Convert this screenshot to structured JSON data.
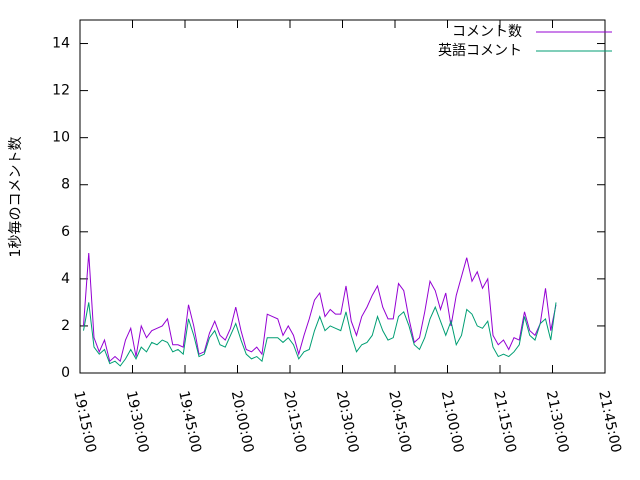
{
  "chart_data": {
    "type": "line",
    "y_label": "1秒毎のコメント数",
    "x": [
      "19:16:00",
      "19:17:30",
      "19:19:00",
      "19:20:30",
      "19:22:00",
      "19:23:30",
      "19:25:00",
      "19:26:30",
      "19:28:00",
      "19:29:30",
      "19:31:00",
      "19:32:30",
      "19:34:00",
      "19:35:30",
      "19:37:00",
      "19:38:30",
      "19:40:00",
      "19:41:30",
      "19:43:00",
      "19:44:30",
      "19:46:00",
      "19:47:30",
      "19:49:00",
      "19:50:30",
      "19:52:00",
      "19:53:30",
      "19:55:00",
      "19:56:30",
      "19:58:00",
      "19:59:30",
      "20:01:00",
      "20:02:30",
      "20:04:00",
      "20:05:30",
      "20:07:00",
      "20:08:30",
      "20:10:00",
      "20:11:30",
      "20:13:00",
      "20:14:30",
      "20:16:00",
      "20:17:30",
      "20:19:00",
      "20:20:30",
      "20:22:00",
      "20:23:30",
      "20:25:00",
      "20:26:30",
      "20:28:00",
      "20:29:30",
      "20:31:00",
      "20:32:30",
      "20:34:00",
      "20:35:30",
      "20:37:00",
      "20:38:30",
      "20:40:00",
      "20:41:30",
      "20:43:00",
      "20:44:30",
      "20:46:00",
      "20:47:30",
      "20:49:00",
      "20:50:30",
      "20:52:00",
      "20:53:30",
      "20:55:00",
      "20:56:30",
      "20:58:00",
      "20:59:30",
      "21:01:00",
      "21:02:30",
      "21:04:00",
      "21:05:30",
      "21:07:00",
      "21:08:30",
      "21:10:00",
      "21:11:30",
      "21:13:00",
      "21:14:30",
      "21:16:00",
      "21:17:30",
      "21:19:00",
      "21:20:30",
      "21:22:00",
      "21:23:30",
      "21:25:00",
      "21:26:30",
      "21:28:00",
      "21:29:30",
      "21:31:00"
    ],
    "series": [
      {
        "name": "コメント数",
        "color": "#9400d3",
        "values": [
          2.0,
          5.1,
          1.5,
          0.9,
          1.4,
          0.5,
          0.7,
          0.5,
          1.4,
          1.9,
          0.7,
          2.0,
          1.5,
          1.8,
          1.9,
          2.0,
          2.3,
          1.2,
          1.2,
          1.1,
          2.9,
          2.0,
          0.8,
          0.9,
          1.7,
          2.2,
          1.6,
          1.4,
          1.9,
          2.8,
          1.8,
          1.0,
          0.9,
          1.1,
          0.8,
          2.5,
          2.4,
          2.3,
          1.6,
          2.0,
          1.6,
          0.8,
          1.6,
          2.3,
          3.1,
          3.4,
          2.4,
          2.7,
          2.5,
          2.5,
          3.7,
          2.2,
          1.6,
          2.4,
          2.8,
          3.3,
          3.7,
          2.8,
          2.3,
          2.3,
          3.8,
          3.5,
          2.3,
          1.3,
          1.5,
          2.6,
          3.9,
          3.5,
          2.7,
          3.4,
          2.0,
          3.3,
          4.1,
          4.9,
          3.9,
          4.3,
          3.6,
          4.0,
          1.6,
          1.2,
          1.4,
          1.0,
          1.5,
          1.4,
          2.6,
          1.8,
          1.6,
          2.1,
          3.6,
          1.8,
          2.9
        ]
      },
      {
        "name": "英語コメント",
        "color": "#009e73",
        "values": [
          1.8,
          3.0,
          1.1,
          0.8,
          1.0,
          0.4,
          0.5,
          0.3,
          0.6,
          1.0,
          0.6,
          1.1,
          0.9,
          1.3,
          1.2,
          1.4,
          1.3,
          0.9,
          1.0,
          0.8,
          2.3,
          1.6,
          0.7,
          0.8,
          1.5,
          1.8,
          1.2,
          1.1,
          1.6,
          2.1,
          1.4,
          0.8,
          0.6,
          0.7,
          0.5,
          1.5,
          1.5,
          1.5,
          1.3,
          1.5,
          1.2,
          0.6,
          0.9,
          1.0,
          1.8,
          2.4,
          1.8,
          2.0,
          1.9,
          1.8,
          2.6,
          1.6,
          0.9,
          1.2,
          1.3,
          1.6,
          2.4,
          1.8,
          1.4,
          1.5,
          2.4,
          2.6,
          2.0,
          1.2,
          1.0,
          1.5,
          2.3,
          2.8,
          2.2,
          1.6,
          2.2,
          1.2,
          1.6,
          2.7,
          2.5,
          2.0,
          1.9,
          2.2,
          1.1,
          0.7,
          0.8,
          0.7,
          0.9,
          1.2,
          2.4,
          1.6,
          1.4,
          2.1,
          2.3,
          1.4,
          3.0
        ]
      }
    ],
    "xlim": [
      "19:15:00",
      "21:45:00"
    ],
    "xticks": [
      "19:15:00",
      "19:30:00",
      "19:45:00",
      "20:00:00",
      "20:15:00",
      "20:30:00",
      "20:45:00",
      "21:00:00",
      "21:15:00",
      "21:30:00",
      "21:45:00"
    ],
    "ylim": [
      0,
      15
    ],
    "yticks": [
      0,
      2,
      4,
      6,
      8,
      10,
      12,
      14
    ],
    "grid": false,
    "legend": "top-right"
  }
}
